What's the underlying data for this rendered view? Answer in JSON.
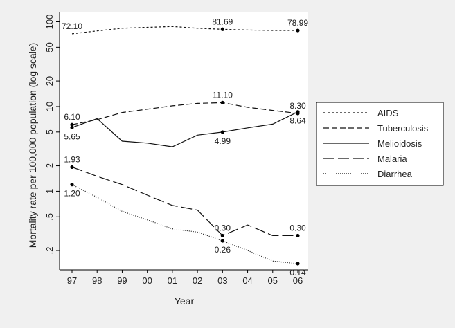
{
  "chart_data": {
    "type": "line",
    "title": "",
    "xlabel": "Year",
    "ylabel": "Mortality rate per 100,000 population (log scale)",
    "yscale": "log",
    "ylim": [
      0.15,
      110
    ],
    "grid": false,
    "legend_position": "right",
    "x_categories": [
      "97",
      "98",
      "99",
      "00",
      "01",
      "02",
      "03",
      "04",
      "05",
      "06"
    ],
    "y_ticks": [
      {
        "value": 100,
        "label": "100"
      },
      {
        "value": 50,
        "label": "50"
      },
      {
        "value": 20,
        "label": "20"
      },
      {
        "value": 10,
        "label": "10"
      },
      {
        "value": 5,
        "label": "5"
      },
      {
        "value": 2,
        "label": "2"
      },
      {
        "value": 1,
        "label": "1"
      },
      {
        "value": 0.5,
        "label": ".5"
      },
      {
        "value": 0.2,
        "label": ".2"
      }
    ],
    "series": [
      {
        "name": "AIDS",
        "dash": "3,3",
        "values": [
          72.1,
          78,
          84,
          86,
          88,
          84,
          81.69,
          80,
          79,
          78.99
        ],
        "markers": [
          6,
          9
        ],
        "labels": [
          {
            "index": 0,
            "text": "72.10",
            "pos": "above"
          },
          {
            "index": 6,
            "text": "81.69",
            "pos": "above"
          },
          {
            "index": 9,
            "text": "78.99",
            "pos": "above"
          }
        ]
      },
      {
        "name": "Tuberculosis",
        "dash": "8,4",
        "values": [
          6.1,
          7.0,
          8.5,
          9.3,
          10.2,
          10.9,
          11.1,
          9.8,
          9.0,
          8.3
        ],
        "markers": [
          0,
          6,
          9
        ],
        "labels": [
          {
            "index": 0,
            "text": "6.10",
            "pos": "above"
          },
          {
            "index": 6,
            "text": "11.10",
            "pos": "above"
          },
          {
            "index": 9,
            "text": "8.30",
            "pos": "above"
          }
        ]
      },
      {
        "name": "Melioidosis",
        "dash": "",
        "values": [
          5.65,
          7.2,
          3.9,
          3.7,
          3.35,
          4.6,
          4.99,
          5.6,
          6.2,
          8.64
        ],
        "markers": [
          0,
          6,
          9
        ],
        "labels": [
          {
            "index": 0,
            "text": "5.65",
            "pos": "below"
          },
          {
            "index": 6,
            "text": "4.99",
            "pos": "below"
          },
          {
            "index": 9,
            "text": "8.64",
            "pos": "below"
          }
        ]
      },
      {
        "name": "Malaria",
        "dash": "16,5",
        "values": [
          1.93,
          1.5,
          1.2,
          0.9,
          0.68,
          0.6,
          0.3,
          0.4,
          0.3,
          0.3
        ],
        "markers": [
          0,
          6,
          9
        ],
        "labels": [
          {
            "index": 0,
            "text": "1.93",
            "pos": "above"
          },
          {
            "index": 6,
            "text": "0.30",
            "pos": "above"
          },
          {
            "index": 9,
            "text": "0.30",
            "pos": "above"
          }
        ]
      },
      {
        "name": "Diarrhea",
        "dash": "1,2",
        "values": [
          1.2,
          0.85,
          0.58,
          0.46,
          0.36,
          0.33,
          0.26,
          0.2,
          0.15,
          0.14
        ],
        "markers": [
          0,
          6,
          9
        ],
        "labels": [
          {
            "index": 0,
            "text": "1.20",
            "pos": "below"
          },
          {
            "index": 6,
            "text": "0.26",
            "pos": "below"
          },
          {
            "index": 9,
            "text": "0.14",
            "pos": "below"
          }
        ]
      }
    ]
  }
}
